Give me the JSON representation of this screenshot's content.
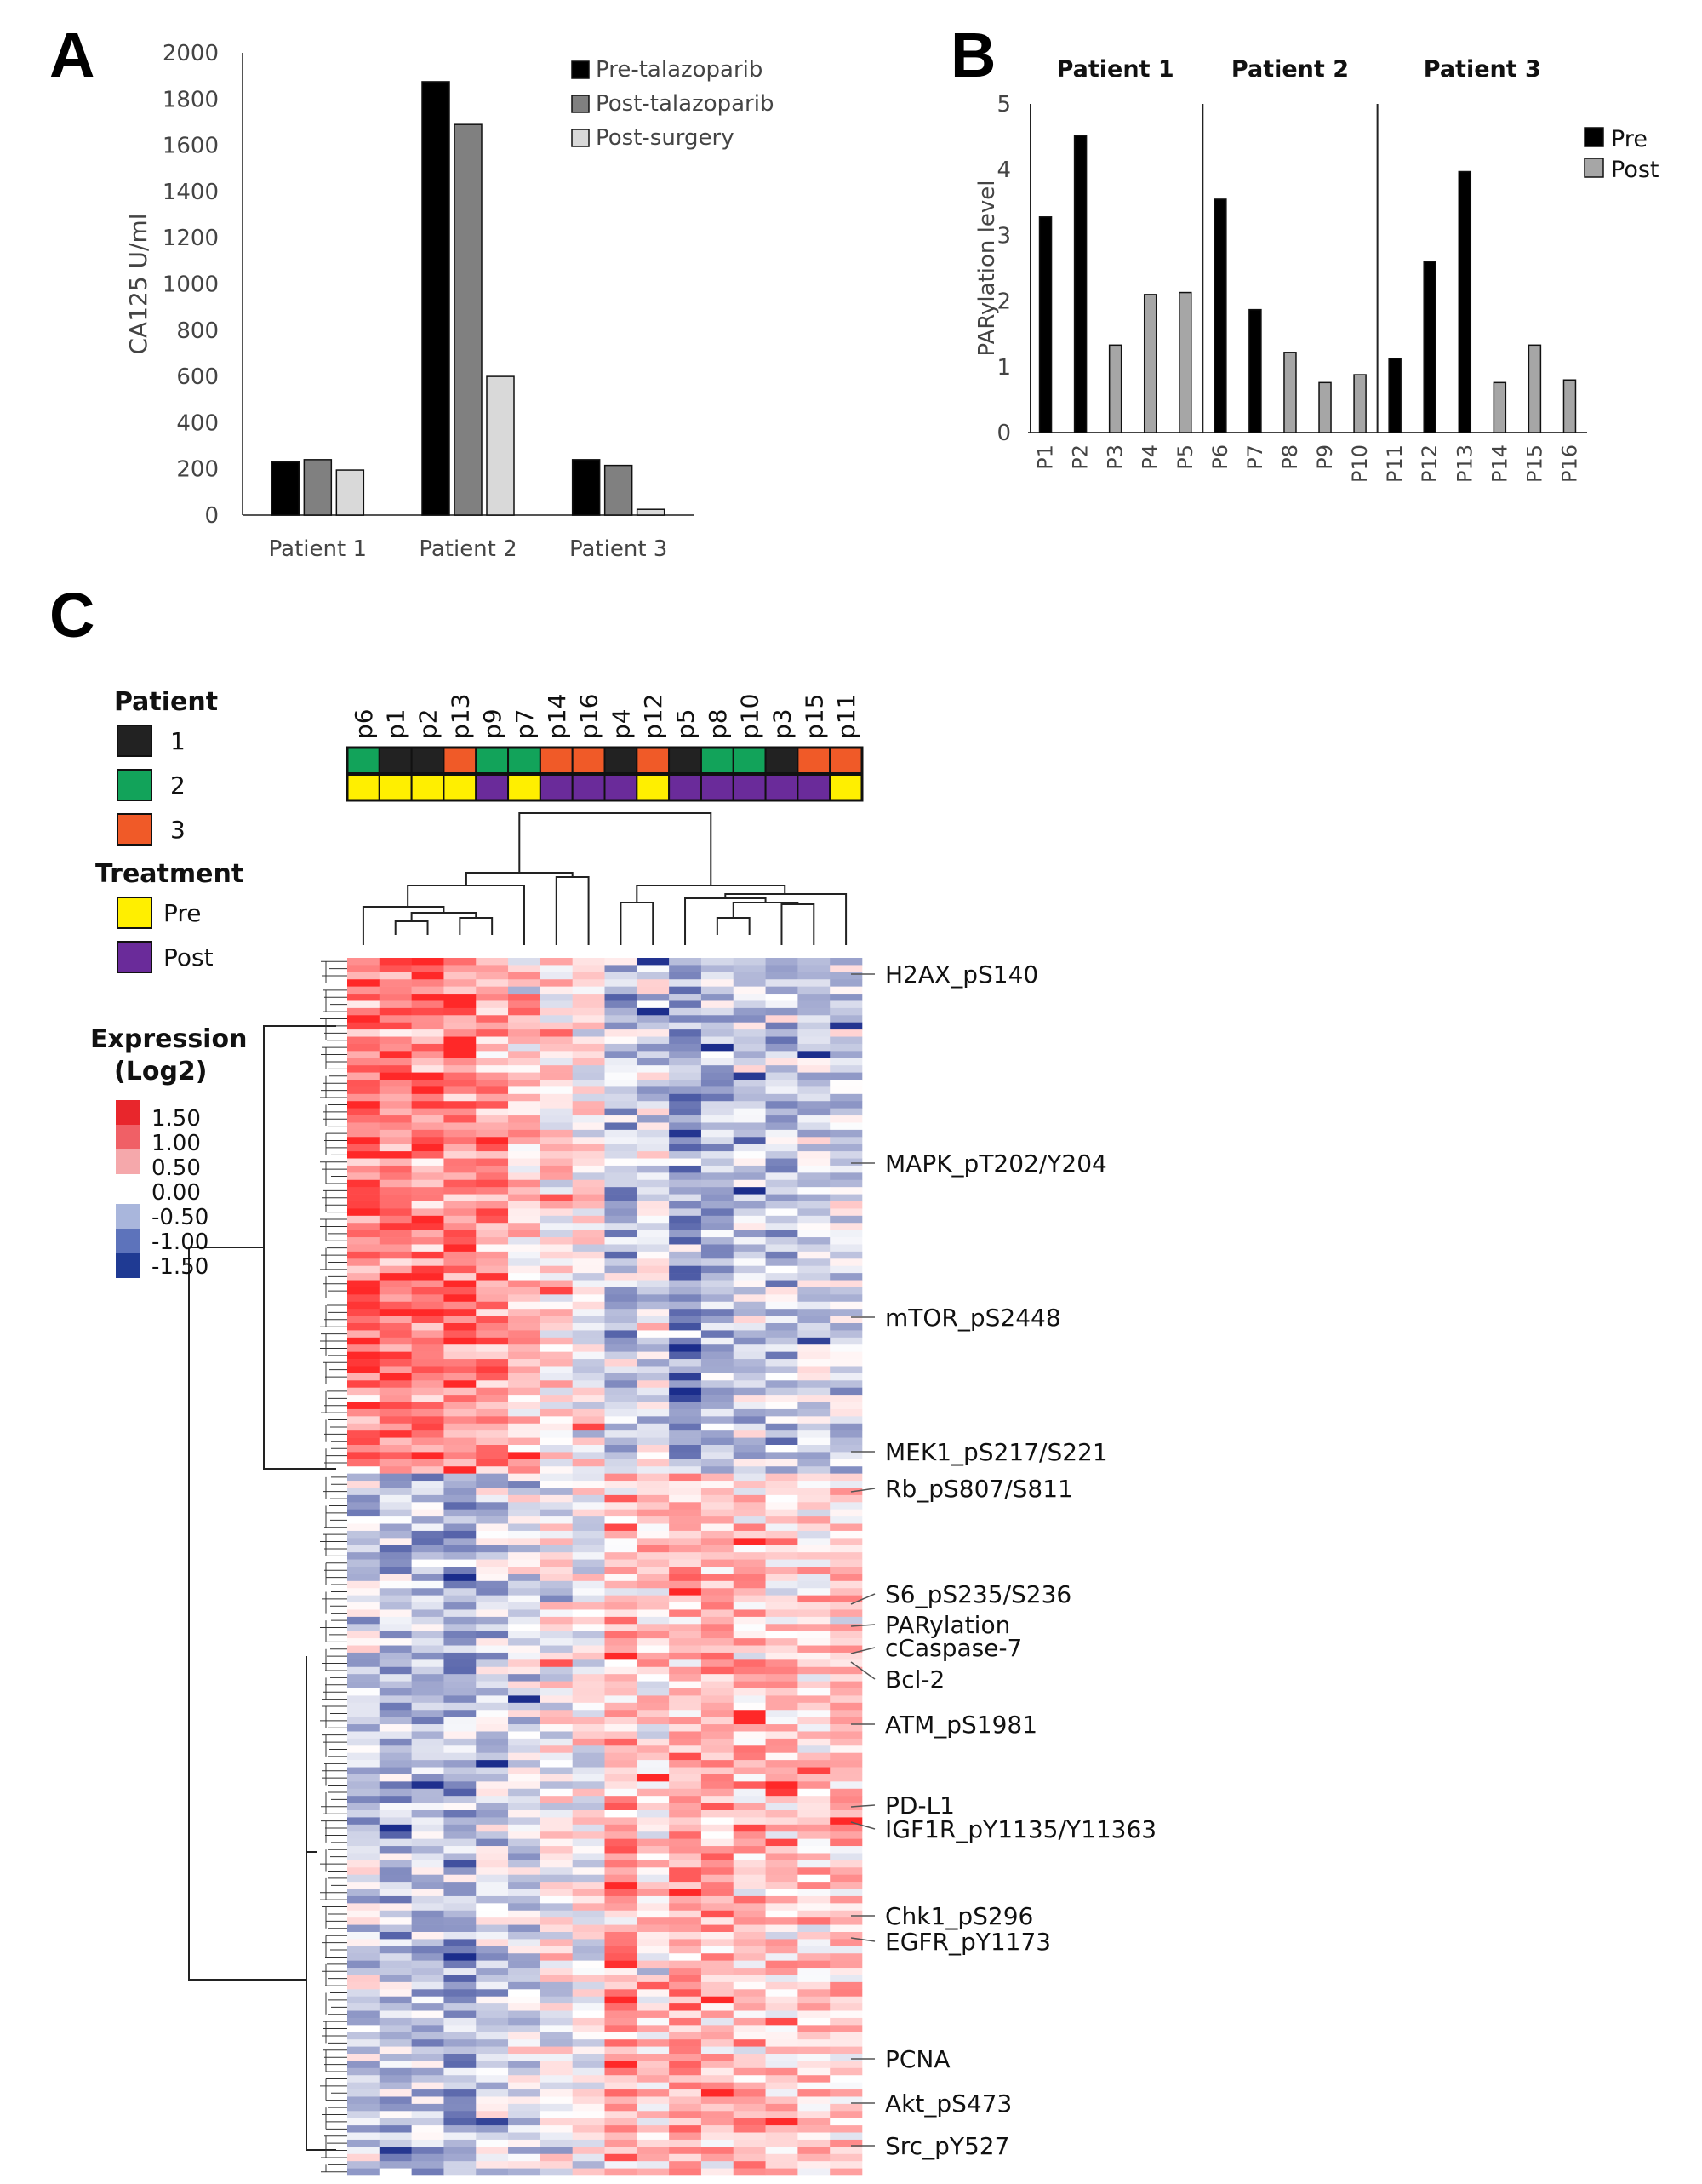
{
  "panels": {
    "a": "A",
    "b": "B",
    "c": "C"
  },
  "colors": {
    "black": "#000000",
    "dark_gray": "#808080",
    "light_gray": "#d9d9d9",
    "patient1": "#222222",
    "patient2": "#12a35a",
    "patient3": "#f05a28",
    "pre": "#ffef00",
    "post": "#6a2b9a"
  },
  "chart_data": [
    {
      "type": "bar",
      "title": "",
      "xlabel": "",
      "ylabel": "CA125 U/ml",
      "ylim": [
        0,
        2000
      ],
      "yticks": [
        "0",
        "200",
        "400",
        "600",
        "800",
        "1000",
        "1200",
        "1400",
        "1600",
        "1800",
        "2000"
      ],
      "categories": [
        "Patient 1",
        "Patient 2",
        "Patient 3"
      ],
      "series": [
        {
          "name": "Pre-talazoparib",
          "color": "#000000",
          "values": [
            230,
            1875,
            240
          ]
        },
        {
          "name": "Post-talazoparib",
          "color": "#808080",
          "values": [
            240,
            1690,
            215
          ]
        },
        {
          "name": "Post-surgery",
          "color": "#d9d9d9",
          "values": [
            195,
            600,
            25
          ]
        }
      ],
      "legend": "top-right"
    },
    {
      "type": "bar",
      "title": "",
      "xlabel": "",
      "ylabel": "PARylation level",
      "ylim": [
        0,
        5
      ],
      "yticks": [
        "0",
        "1",
        "2",
        "3",
        "4",
        "5"
      ],
      "groups": [
        "Patient 1",
        "Patient 2",
        "Patient 3"
      ],
      "categories": [
        "P1",
        "P2",
        "P3",
        "P4",
        "P5",
        "P6",
        "P7",
        "P8",
        "P9",
        "P10",
        "P11",
        "P12",
        "P13",
        "P14",
        "P15",
        "P16"
      ],
      "values": [
        3.28,
        4.52,
        1.33,
        2.1,
        2.13,
        3.55,
        1.87,
        1.22,
        0.76,
        0.88,
        1.13,
        2.6,
        3.97,
        0.76,
        1.33,
        0.8
      ],
      "status": [
        "Pre",
        "Pre",
        "Post",
        "Post",
        "Post",
        "Pre",
        "Pre",
        "Post",
        "Post",
        "Post",
        "Pre",
        "Pre",
        "Pre",
        "Post",
        "Post",
        "Post"
      ],
      "legend_entries": [
        {
          "name": "Pre",
          "color": "#000000"
        },
        {
          "name": "Post",
          "color": "#a6a6a6"
        }
      ],
      "legend": "right"
    },
    {
      "type": "heatmap",
      "columns": [
        "p6",
        "p1",
        "p2",
        "p13",
        "p9",
        "p7",
        "p14",
        "p16",
        "p4",
        "p12",
        "p5",
        "p8",
        "p10",
        "p3",
        "p15",
        "p11"
      ],
      "column_patient": [
        2,
        1,
        1,
        3,
        2,
        2,
        3,
        3,
        1,
        3,
        1,
        2,
        2,
        1,
        3,
        3
      ],
      "column_treatment": [
        "Pre",
        "Pre",
        "Pre",
        "Pre",
        "Post",
        "Pre",
        "Post",
        "Post",
        "Post",
        "Pre",
        "Post",
        "Post",
        "Post",
        "Post",
        "Post",
        "Pre"
      ],
      "patient_legend": {
        "title": "Patient",
        "items": [
          "1",
          "2",
          "3"
        ]
      },
      "treatment_legend": {
        "title": "Treatment",
        "items": [
          "Pre",
          "Post"
        ]
      },
      "expression_legend": {
        "title_line1": "Expression",
        "title_line2": "(Log2)",
        "labels": [
          "1.50",
          "1.00",
          "0.50",
          "0.00",
          "-0.50",
          "-1.00",
          "-1.50"
        ]
      },
      "row_labels": [
        "H2AX_pS140",
        "MAPK_pT202/Y204",
        "mTOR_pS2448",
        "MEK1_pS217/S221",
        "Rb_pS807/S811",
        "S6_pS235/S236",
        "PARylation",
        "cCaspase-7",
        "Bcl-2",
        "ATM_pS1981",
        "PD-L1",
        "IGF1R_pY1135/Y11363",
        "Chk1_pS296",
        "EGFR_pY1173",
        "PCNA",
        "Akt_pS473",
        "Src_pY527"
      ]
    }
  ]
}
